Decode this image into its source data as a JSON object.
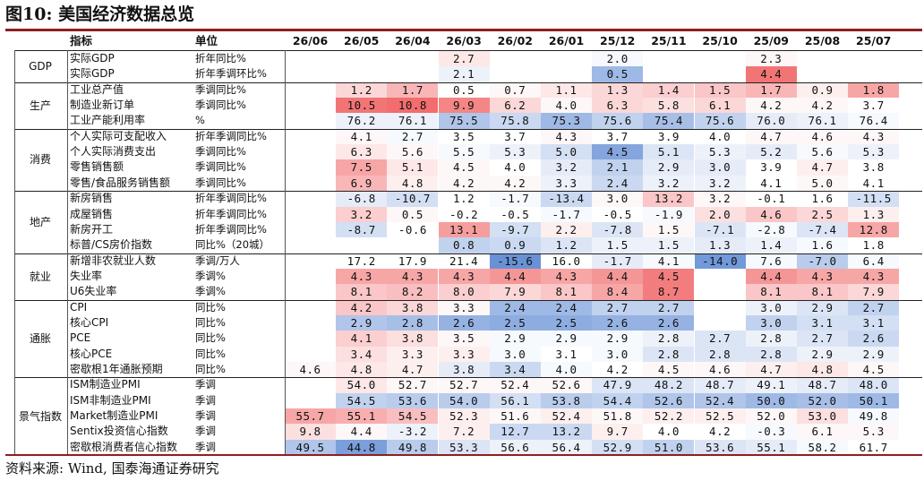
{
  "title": "图10: 美国经济数据总览",
  "source": "资料来源: Wind, 国泰海通证券研究",
  "header": {
    "indicator": "指标",
    "unit": "单位",
    "dates": [
      "26/06",
      "26/05",
      "26/04",
      "26/03",
      "26/02",
      "26/01",
      "25/12",
      "25/11",
      "25/10",
      "25/09",
      "25/08",
      "25/07"
    ]
  },
  "colors": {
    "rule": "#8f1f1f",
    "red_strong": "#f05d5e",
    "blue_strong": "#4f7fcf"
  },
  "categories": [
    {
      "label": "GDP",
      "rows": [
        0,
        1
      ]
    },
    {
      "label": "生产",
      "rows": [
        2,
        4
      ]
    },
    {
      "label": "消费",
      "rows": [
        5,
        8
      ]
    },
    {
      "label": "地产",
      "rows": [
        9,
        12
      ]
    },
    {
      "label": "就业",
      "rows": [
        13,
        15
      ]
    },
    {
      "label": "通胀",
      "rows": [
        16,
        20
      ]
    },
    {
      "label": "景气指数",
      "rows": [
        21,
        25
      ]
    }
  ],
  "rows": [
    {
      "ind": "实际GDP",
      "unit": "折年同比%",
      "cells": [
        [
          "",
          null
        ],
        [
          "",
          null
        ],
        [
          "",
          null
        ],
        [
          "2.7",
          0.15
        ],
        [
          "",
          null
        ],
        [
          "",
          null
        ],
        [
          "2.0",
          -0.05
        ],
        [
          "",
          null
        ],
        [
          "",
          null
        ],
        [
          "2.3",
          0.05
        ],
        [
          "",
          null
        ],
        [
          "",
          null
        ]
      ]
    },
    {
      "ind": "实际GDP",
      "unit": "折年季调环比%",
      "cells": [
        [
          "",
          null
        ],
        [
          "",
          null
        ],
        [
          "",
          null
        ],
        [
          "2.1",
          -0.1
        ],
        [
          "",
          null
        ],
        [
          "",
          null
        ],
        [
          "0.5",
          -0.55
        ],
        [
          "",
          null
        ],
        [
          "",
          null
        ],
        [
          "4.4",
          0.85
        ],
        [
          "",
          null
        ],
        [
          "",
          null
        ]
      ]
    },
    {
      "ind": "工业总产值",
      "unit": "季调同比%",
      "cells": [
        [
          "",
          null
        ],
        [
          "1.2",
          0.25
        ],
        [
          "1.7",
          0.45
        ],
        [
          "0.5",
          0.0
        ],
        [
          "0.7",
          0.05
        ],
        [
          "1.1",
          0.15
        ],
        [
          "1.3",
          0.25
        ],
        [
          "1.4",
          0.3
        ],
        [
          "1.5",
          0.35
        ],
        [
          "1.7",
          0.45
        ],
        [
          "0.9",
          0.1
        ],
        [
          "1.8",
          0.55
        ]
      ]
    },
    {
      "ind": "制造业新订单",
      "unit": "季调同比%",
      "cells": [
        [
          "",
          null
        ],
        [
          "10.5",
          0.85
        ],
        [
          "10.8",
          0.9
        ],
        [
          "9.9",
          0.75
        ],
        [
          "6.2",
          0.25
        ],
        [
          "4.0",
          0.05
        ],
        [
          "6.3",
          0.25
        ],
        [
          "5.8",
          0.2
        ],
        [
          "6.1",
          0.25
        ],
        [
          "4.2",
          0.05
        ],
        [
          "4.2",
          0.05
        ],
        [
          "3.7",
          0.0
        ]
      ]
    },
    {
      "ind": "工业产能利用率",
      "unit": "%",
      "cells": [
        [
          "",
          null
        ],
        [
          "76.2",
          -0.1
        ],
        [
          "76.1",
          -0.1
        ],
        [
          "75.5",
          -0.45
        ],
        [
          "75.8",
          -0.3
        ],
        [
          "75.3",
          -0.55
        ],
        [
          "75.6",
          -0.35
        ],
        [
          "75.4",
          -0.5
        ],
        [
          "75.6",
          -0.35
        ],
        [
          "76.0",
          -0.15
        ],
        [
          "76.1",
          -0.1
        ],
        [
          "76.4",
          -0.05
        ]
      ]
    },
    {
      "ind": "个人实际可支配收入",
      "unit": "折年季调同比%",
      "cells": [
        [
          "",
          null
        ],
        [
          "4.1",
          0.05
        ],
        [
          "2.7",
          -0.05
        ],
        [
          "3.5",
          0.0
        ],
        [
          "3.7",
          0.0
        ],
        [
          "4.3",
          0.05
        ],
        [
          "3.7",
          0.0
        ],
        [
          "3.9",
          0.0
        ],
        [
          "4.0",
          0.0
        ],
        [
          "4.7",
          0.05
        ],
        [
          "4.6",
          0.05
        ],
        [
          "4.3",
          0.05
        ]
      ]
    },
    {
      "ind": "个人实际消费支出",
      "unit": "季调同比%",
      "cells": [
        [
          "",
          null
        ],
        [
          "6.3",
          0.15
        ],
        [
          "5.6",
          0.05
        ],
        [
          "5.5",
          -0.05
        ],
        [
          "5.3",
          -0.1
        ],
        [
          "5.0",
          -0.25
        ],
        [
          "4.5",
          -0.7
        ],
        [
          "5.1",
          -0.2
        ],
        [
          "5.3",
          -0.1
        ],
        [
          "5.2",
          -0.15
        ],
        [
          "5.6",
          -0.05
        ],
        [
          "5.3",
          -0.1
        ]
      ]
    },
    {
      "ind": "零售销售额",
      "unit": "季调同比%",
      "cells": [
        [
          "",
          null
        ],
        [
          "7.5",
          0.55
        ],
        [
          "5.1",
          0.15
        ],
        [
          "4.5",
          0.05
        ],
        [
          "4.0",
          0.0
        ],
        [
          "3.2",
          -0.15
        ],
        [
          "2.1",
          -0.35
        ],
        [
          "2.9",
          -0.15
        ],
        [
          "3.0",
          -0.15
        ],
        [
          "3.9",
          0.0
        ],
        [
          "4.7",
          0.1
        ],
        [
          "3.8",
          0.0
        ]
      ]
    },
    {
      "ind": "零售/食品服务销售额",
      "unit": "季调同比%",
      "cells": [
        [
          "",
          null
        ],
        [
          "6.9",
          0.45
        ],
        [
          "4.8",
          0.1
        ],
        [
          "4.2",
          0.05
        ],
        [
          "4.2",
          0.05
        ],
        [
          "3.3",
          -0.1
        ],
        [
          "2.4",
          -0.3
        ],
        [
          "3.2",
          -0.1
        ],
        [
          "3.2",
          -0.1
        ],
        [
          "4.1",
          0.0
        ],
        [
          "5.0",
          0.05
        ],
        [
          "4.1",
          0.0
        ]
      ]
    },
    {
      "ind": "新房销售",
      "unit": "折年季调同比%",
      "cells": [
        [
          "",
          null
        ],
        [
          "-6.8",
          -0.15
        ],
        [
          "-10.7",
          -0.25
        ],
        [
          "1.2",
          0.0
        ],
        [
          "-1.7",
          -0.05
        ],
        [
          "-13.4",
          -0.3
        ],
        [
          "3.0",
          0.05
        ],
        [
          "13.2",
          0.35
        ],
        [
          "3.2",
          0.05
        ],
        [
          "-0.1",
          0.0
        ],
        [
          "1.6",
          0.0
        ],
        [
          "-11.5",
          -0.25
        ]
      ]
    },
    {
      "ind": "成屋销售",
      "unit": "折年季调同比%",
      "cells": [
        [
          "",
          null
        ],
        [
          "3.2",
          0.3
        ],
        [
          "0.5",
          0.05
        ],
        [
          "-0.2",
          0.0
        ],
        [
          "-0.5",
          0.0
        ],
        [
          "-1.7",
          -0.05
        ],
        [
          "-0.5",
          0.0
        ],
        [
          "-1.9",
          -0.05
        ],
        [
          "2.0",
          0.2
        ],
        [
          "4.6",
          0.35
        ],
        [
          "2.5",
          0.25
        ],
        [
          "1.3",
          0.1
        ]
      ]
    },
    {
      "ind": "新房开工",
      "unit": "折年季调同比%",
      "cells": [
        [
          "",
          null
        ],
        [
          "-8.7",
          -0.25
        ],
        [
          "-0.6",
          0.0
        ],
        [
          "13.1",
          0.6
        ],
        [
          "-9.7",
          -0.25
        ],
        [
          "2.2",
          0.1
        ],
        [
          "-7.8",
          -0.2
        ],
        [
          "1.5",
          0.05
        ],
        [
          "-7.1",
          -0.2
        ],
        [
          "-2.8",
          -0.05
        ],
        [
          "-7.4",
          -0.2
        ],
        [
          "12.8",
          0.55
        ]
      ]
    },
    {
      "ind": "标普/CS房价指数",
      "unit": "同比%（20城）",
      "cells": [
        [
          "",
          null
        ],
        [
          "",
          null
        ],
        [
          "",
          null
        ],
        [
          "0.8",
          -0.35
        ],
        [
          "0.9",
          -0.3
        ],
        [
          "1.2",
          -0.2
        ],
        [
          "1.5",
          -0.1
        ],
        [
          "1.5",
          -0.1
        ],
        [
          "1.3",
          -0.15
        ],
        [
          "1.4",
          -0.1
        ],
        [
          "1.6",
          -0.05
        ],
        [
          "1.8",
          0.0
        ]
      ]
    },
    {
      "ind": "新增非农就业人数",
      "unit": "季调/万人",
      "cells": [
        [
          "",
          null
        ],
        [
          "17.2",
          0.0
        ],
        [
          "17.9",
          0.0
        ],
        [
          "21.4",
          0.0
        ],
        [
          "-15.6",
          -0.85
        ],
        [
          "16.0",
          0.0
        ],
        [
          "-1.7",
          -0.15
        ],
        [
          "4.1",
          -0.05
        ],
        [
          "-14.0",
          -0.8
        ],
        [
          "7.6",
          -0.05
        ],
        [
          "-7.0",
          -0.4
        ],
        [
          "6.4",
          -0.05
        ]
      ]
    },
    {
      "ind": "失业率",
      "unit": "季调%",
      "cells": [
        [
          "",
          null
        ],
        [
          "4.3",
          0.55
        ],
        [
          "4.3",
          0.55
        ],
        [
          "4.3",
          0.55
        ],
        [
          "4.4",
          0.65
        ],
        [
          "4.3",
          0.55
        ],
        [
          "4.4",
          0.65
        ],
        [
          "4.5",
          0.8
        ],
        [
          "",
          null
        ],
        [
          "4.4",
          0.65
        ],
        [
          "4.3",
          0.55
        ],
        [
          "4.3",
          0.55
        ]
      ]
    },
    {
      "ind": "U6失业率",
      "unit": "季调%",
      "cells": [
        [
          "",
          null
        ],
        [
          "8.1",
          0.35
        ],
        [
          "8.2",
          0.4
        ],
        [
          "8.0",
          0.3
        ],
        [
          "7.9",
          0.25
        ],
        [
          "8.1",
          0.35
        ],
        [
          "8.4",
          0.55
        ],
        [
          "8.7",
          0.8
        ],
        [
          "",
          null
        ],
        [
          "8.1",
          0.35
        ],
        [
          "8.1",
          0.35
        ],
        [
          "7.9",
          0.25
        ]
      ]
    },
    {
      "ind": "CPI",
      "unit": "同比%",
      "cells": [
        [
          "",
          null
        ],
        [
          "4.2",
          0.35
        ],
        [
          "3.8",
          0.25
        ],
        [
          "3.3",
          0.05
        ],
        [
          "2.4",
          -0.55
        ],
        [
          "2.4",
          -0.55
        ],
        [
          "2.7",
          -0.35
        ],
        [
          "2.7",
          -0.35
        ],
        [
          "",
          null
        ],
        [
          "3.0",
          -0.1
        ],
        [
          "2.9",
          -0.2
        ],
        [
          "2.7",
          -0.35
        ]
      ]
    },
    {
      "ind": "核心CPI",
      "unit": "同比%",
      "cells": [
        [
          "",
          null
        ],
        [
          "2.9",
          -0.45
        ],
        [
          "2.8",
          -0.5
        ],
        [
          "2.6",
          -0.6
        ],
        [
          "2.5",
          -0.65
        ],
        [
          "2.5",
          -0.65
        ],
        [
          "2.6",
          -0.6
        ],
        [
          "2.6",
          -0.6
        ],
        [
          "",
          null
        ],
        [
          "3.0",
          -0.35
        ],
        [
          "3.1",
          -0.25
        ],
        [
          "3.1",
          -0.25
        ]
      ]
    },
    {
      "ind": "PCE",
      "unit": "同比%",
      "cells": [
        [
          "",
          null
        ],
        [
          "4.1",
          0.3
        ],
        [
          "3.8",
          0.2
        ],
        [
          "3.5",
          0.05
        ],
        [
          "2.9",
          -0.05
        ],
        [
          "2.9",
          -0.05
        ],
        [
          "2.9",
          -0.05
        ],
        [
          "2.8",
          -0.1
        ],
        [
          "2.7",
          -0.2
        ],
        [
          "2.8",
          -0.1
        ],
        [
          "2.7",
          -0.2
        ],
        [
          "2.6",
          -0.3
        ]
      ]
    },
    {
      "ind": "核心PCE",
      "unit": "同比%",
      "cells": [
        [
          "",
          null
        ],
        [
          "3.4",
          0.2
        ],
        [
          "3.3",
          0.1
        ],
        [
          "3.3",
          0.1
        ],
        [
          "3.0",
          -0.05
        ],
        [
          "3.1",
          0.0
        ],
        [
          "3.0",
          -0.05
        ],
        [
          "2.8",
          -0.2
        ],
        [
          "2.8",
          -0.2
        ],
        [
          "2.8",
          -0.2
        ],
        [
          "2.9",
          -0.1
        ],
        [
          "2.9",
          -0.1
        ]
      ]
    },
    {
      "ind": "密歇根1年通胀预期",
      "unit": "同比%",
      "cells": [
        [
          "4.6",
          0.05
        ],
        [
          "4.8",
          0.15
        ],
        [
          "4.7",
          0.1
        ],
        [
          "3.8",
          -0.15
        ],
        [
          "3.4",
          -0.3
        ],
        [
          "4.0",
          -0.05
        ],
        [
          "4.2",
          0.0
        ],
        [
          "4.5",
          0.05
        ],
        [
          "4.6",
          0.05
        ],
        [
          "4.7",
          0.1
        ],
        [
          "4.8",
          0.15
        ],
        [
          "4.5",
          0.05
        ]
      ]
    },
    {
      "ind": "ISM制造业PMI",
      "unit": "季调",
      "cells": [
        [
          "",
          null
        ],
        [
          "54.0",
          0.15
        ],
        [
          "52.7",
          0.05
        ],
        [
          "52.7",
          0.05
        ],
        [
          "52.4",
          0.05
        ],
        [
          "52.6",
          0.05
        ],
        [
          "47.9",
          -0.2
        ],
        [
          "48.2",
          -0.2
        ],
        [
          "48.7",
          -0.15
        ],
        [
          "49.1",
          -0.1
        ],
        [
          "48.7",
          -0.15
        ],
        [
          "48.0",
          -0.2
        ]
      ]
    },
    {
      "ind": "ISM非制造业PMI",
      "unit": "季调",
      "cells": [
        [
          "",
          null
        ],
        [
          "54.5",
          -0.35
        ],
        [
          "53.6",
          -0.4
        ],
        [
          "54.0",
          -0.4
        ],
        [
          "56.1",
          -0.25
        ],
        [
          "53.8",
          -0.4
        ],
        [
          "54.4",
          -0.35
        ],
        [
          "52.6",
          -0.45
        ],
        [
          "52.4",
          -0.45
        ],
        [
          "50.0",
          -0.55
        ],
        [
          "52.0",
          -0.5
        ],
        [
          "50.1",
          -0.55
        ]
      ]
    },
    {
      "ind": "Market制造业PMI",
      "unit": "季调",
      "cells": [
        [
          "55.7",
          0.55
        ],
        [
          "55.1",
          0.5
        ],
        [
          "54.5",
          0.4
        ],
        [
          "52.3",
          0.1
        ],
        [
          "51.6",
          0.05
        ],
        [
          "52.4",
          0.1
        ],
        [
          "51.8",
          0.05
        ],
        [
          "52.2",
          0.1
        ],
        [
          "52.5",
          0.1
        ],
        [
          "52.0",
          0.05
        ],
        [
          "53.0",
          0.2
        ],
        [
          "49.8",
          -0.05
        ]
      ]
    },
    {
      "ind": "Sentix投资信心指数",
      "unit": "季调",
      "cells": [
        [
          "9.8",
          0.2
        ],
        [
          "4.4",
          0.05
        ],
        [
          "-3.2",
          -0.1
        ],
        [
          "7.2",
          0.1
        ],
        [
          "12.7",
          -0.3
        ],
        [
          "13.2",
          -0.3
        ],
        [
          "9.7",
          0.1
        ],
        [
          "4.0",
          0.0
        ],
        [
          "4.2",
          0.0
        ],
        [
          "-0.3",
          -0.05
        ],
        [
          "6.1",
          0.05
        ],
        [
          "5.3",
          0.05
        ]
      ]
    },
    {
      "ind": "密歇根消费者信心指数",
      "unit": "季调",
      "cells": [
        [
          "49.5",
          -0.45
        ],
        [
          "44.8",
          -0.75
        ],
        [
          "49.8",
          -0.4
        ],
        [
          "53.3",
          -0.2
        ],
        [
          "56.6",
          -0.1
        ],
        [
          "56.4",
          -0.1
        ],
        [
          "52.9",
          -0.25
        ],
        [
          "51.0",
          -0.35
        ],
        [
          "53.6",
          -0.2
        ],
        [
          "55.1",
          -0.15
        ],
        [
          "58.2",
          -0.05
        ],
        [
          "61.7",
          0.0
        ]
      ]
    }
  ]
}
